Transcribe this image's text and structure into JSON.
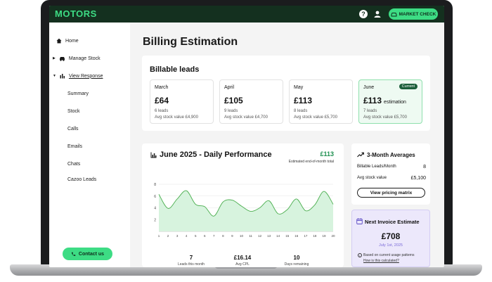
{
  "header": {
    "logo": "MOTORS",
    "market_check": "MARKET CHECK"
  },
  "sidebar": {
    "items": [
      {
        "label": "Home",
        "icon": "home-icon"
      },
      {
        "label": "Manage Stock",
        "icon": "car-icon"
      },
      {
        "label": "View Response",
        "icon": "bar-chart-icon"
      }
    ],
    "sub_items": [
      "Summary",
      "Stock",
      "Calls",
      "Emails",
      "Chats",
      "Cazoo Leads"
    ],
    "contact_label": "Contact us"
  },
  "page": {
    "title": "Billing Estimation"
  },
  "billable": {
    "title": "Billable leads",
    "months": [
      {
        "name": "March",
        "price": "£64",
        "suffix": "",
        "leads": "6 leads",
        "stock": "Avg stock value £4,900",
        "badge": ""
      },
      {
        "name": "April",
        "price": "£105",
        "suffix": "",
        "leads": "9 leads",
        "stock": "Avg stock value £4,700",
        "badge": ""
      },
      {
        "name": "May",
        "price": "£113",
        "suffix": "",
        "leads": "8 leads",
        "stock": "Avg stock value £5,700",
        "badge": ""
      },
      {
        "name": "June",
        "price": "£113",
        "suffix": "estimation",
        "leads": "7 leads",
        "stock": "Avg stock value £5,700",
        "badge": "Current"
      }
    ]
  },
  "performance": {
    "title": "June 2025 - Daily Performance",
    "total": "£113",
    "total_label": "Estimated end-of-month total",
    "stats": [
      {
        "value": "7",
        "label": "Leads this month"
      },
      {
        "value": "£16.14",
        "label": "Avg CPL"
      },
      {
        "value": "10",
        "label": "Days remaining"
      }
    ]
  },
  "chart_data": {
    "type": "area",
    "x": [
      1,
      2,
      3,
      4,
      5,
      6,
      7,
      8,
      9,
      10,
      11,
      12,
      13,
      14,
      15,
      16,
      17,
      18,
      19,
      20
    ],
    "values": [
      6.3,
      3.9,
      5.5,
      6.9,
      4.6,
      4.2,
      2.6,
      5.0,
      5.3,
      4.3,
      3.4,
      4.0,
      5.2,
      3.0,
      3.7,
      5.5,
      3.5,
      4.5,
      6.8,
      4.6
    ],
    "ylim": [
      0,
      8
    ],
    "yticks": [
      2,
      4,
      6,
      8
    ],
    "color": "#d7f3de",
    "line_color": "#4caf50"
  },
  "averages": {
    "title": "3-Month Averages",
    "rows": [
      {
        "label": "Billable Leads/Month",
        "value": "8"
      },
      {
        "label": "Avg stock value",
        "value": "£5,100"
      }
    ],
    "button": "View pricing matrix"
  },
  "invoice": {
    "title": "Next Invoice Estimate",
    "amount": "£708",
    "date": "July 1st, 2025",
    "note": "Based on current usage patterns",
    "link": "How is this calculated?"
  },
  "colors": {
    "brand": "#3ddc84",
    "header": "#14301f",
    "invoice_bg": "#ece8fb"
  }
}
